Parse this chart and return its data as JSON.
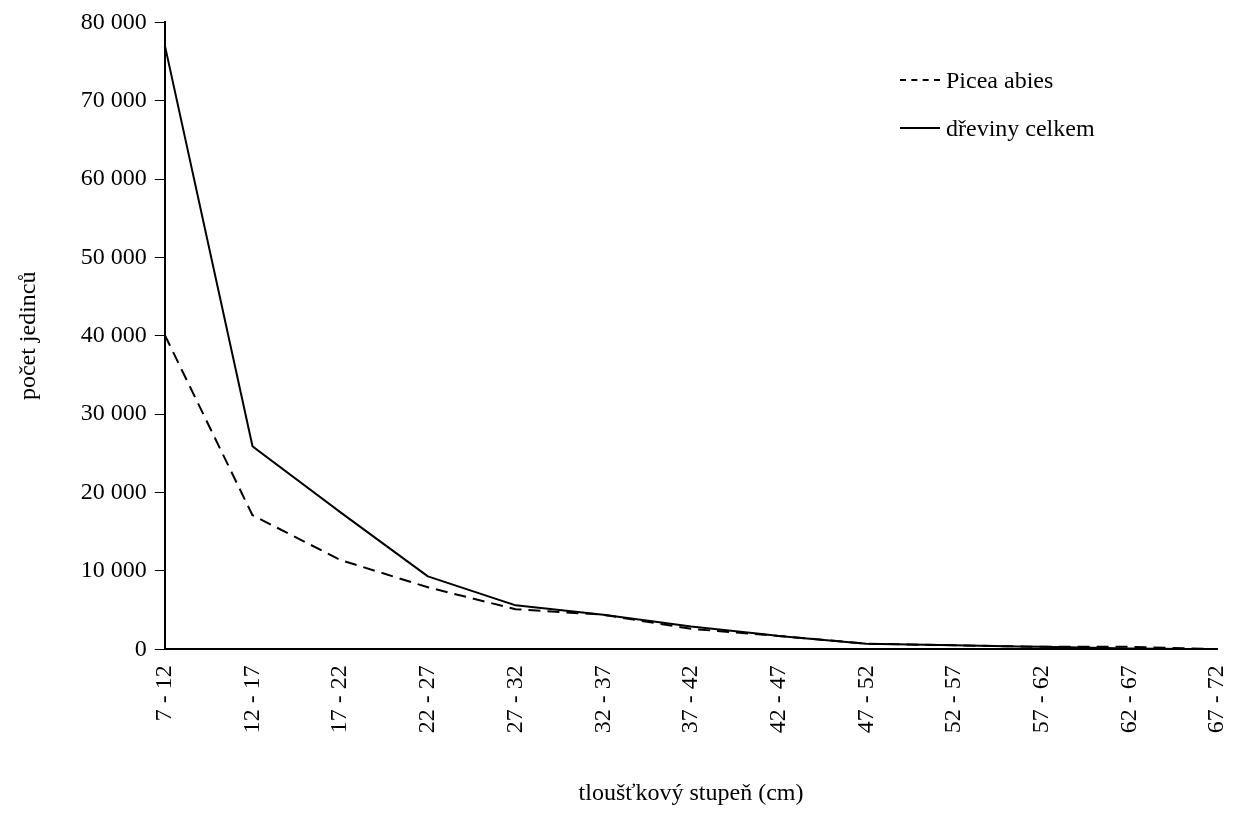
{
  "chart_data": {
    "type": "line",
    "xlabel": "tloušťkový stupeň (cm)",
    "ylabel": "počet jedinců",
    "categories": [
      "7 - 12",
      "12 - 17",
      "17 - 22",
      "22 - 27",
      "27 - 32",
      "32 - 37",
      "37 - 42",
      "42 - 47",
      "47 - 52",
      "52 - 57",
      "57 - 62",
      "62 - 67",
      "67 - 72"
    ],
    "series": [
      {
        "name": "Picea abies",
        "color": "#000000",
        "line_style": "dashed",
        "values": [
          40100,
          17100,
          11400,
          7900,
          5100,
          4400,
          2600,
          1700,
          700,
          500,
          300,
          300,
          0
        ]
      },
      {
        "name": "dřeviny celkem",
        "color": "#000000",
        "line_style": "solid",
        "values": [
          77100,
          25900,
          17500,
          9300,
          5600,
          4400,
          2900,
          1700,
          700,
          500,
          300,
          100,
          0
        ]
      }
    ],
    "ylim": [
      0,
      80000
    ],
    "yticks": [
      {
        "value": 0,
        "label": "0"
      },
      {
        "value": 10000,
        "label": "10 000"
      },
      {
        "value": 20000,
        "label": "20 000"
      },
      {
        "value": 30000,
        "label": "30 000"
      },
      {
        "value": 40000,
        "label": "40 000"
      },
      {
        "value": 50000,
        "label": "50 000"
      },
      {
        "value": 60000,
        "label": "60 000"
      },
      {
        "value": 70000,
        "label": "70 000"
      },
      {
        "value": 80000,
        "label": "80 000"
      }
    ],
    "grid": false,
    "legend": "top right",
    "marker": "none"
  }
}
